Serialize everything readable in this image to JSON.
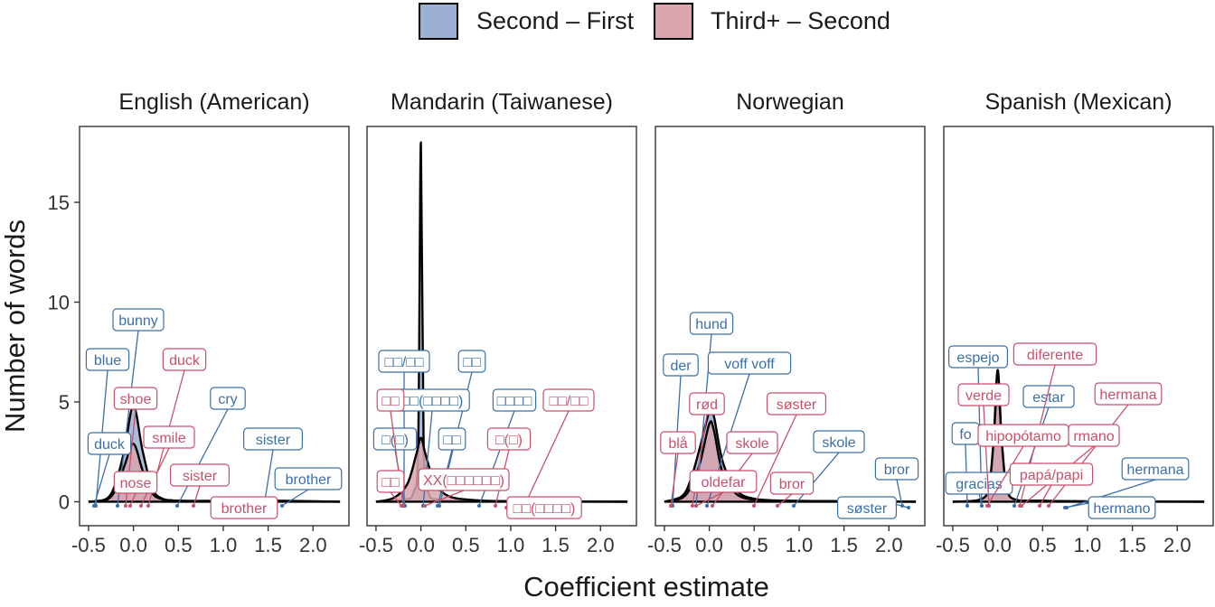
{
  "colors": {
    "series1_fill": "#9bb0d3",
    "series2_fill": "#dba5ae",
    "series1_text": "#3b6fa8",
    "series2_text": "#c8516a",
    "outline": "#000000"
  },
  "chart_data": {
    "type": "area",
    "xlabel": "Coefficient estimate",
    "ylabel": "Number of words",
    "legend": {
      "position": "top",
      "entries": [
        "Second – First",
        "Third+ – Second"
      ]
    },
    "xlim": [
      -0.6,
      2.4
    ],
    "ylim": [
      -1.2,
      18.8
    ],
    "xticks": [
      "-0.5",
      "0.0",
      "0.5",
      "1.0",
      "1.5",
      "2.0"
    ],
    "xtick_values": [
      -0.5,
      0,
      0.5,
      1,
      1.5,
      2
    ],
    "yticks": [
      "0",
      "5",
      "10",
      "15"
    ],
    "ytick_values": [
      0,
      5,
      10,
      15
    ],
    "grid": false,
    "panels": [
      {
        "title": "English (American)",
        "series": [
          {
            "name": "Second – First",
            "x": [
              -0.5,
              -0.3,
              -0.2,
              -0.1,
              0.0,
              0.1,
              0.2,
              0.3,
              0.5,
              1.0,
              1.6,
              2.3
            ],
            "y": [
              0,
              0.15,
              0.9,
              2.6,
              4.8,
              2.6,
              0.8,
              0.2,
              0.05,
              0.05,
              0.05,
              0
            ]
          },
          {
            "name": "Third+ – Second",
            "x": [
              -0.5,
              -0.3,
              -0.2,
              -0.1,
              0.0,
              0.1,
              0.2,
              0.3,
              0.5,
              1.0,
              1.6,
              2.3
            ],
            "y": [
              0,
              0.1,
              0.6,
              1.8,
              2.9,
              1.6,
              0.5,
              0.15,
              0.05,
              0.03,
              0.02,
              0
            ]
          }
        ],
        "annotations": [
          {
            "text": "bunny",
            "series": "Second – First"
          },
          {
            "text": "blue",
            "series": "Second – First"
          },
          {
            "text": "cry",
            "series": "Second – First"
          },
          {
            "text": "duck",
            "series": "Second – First"
          },
          {
            "text": "sister",
            "series": "Second – First"
          },
          {
            "text": "brother",
            "series": "Second – First"
          },
          {
            "text": "duck",
            "series": "Third+ – Second"
          },
          {
            "text": "shoe",
            "series": "Third+ – Second"
          },
          {
            "text": "smile",
            "series": "Third+ – Second"
          },
          {
            "text": "sister",
            "series": "Third+ – Second"
          },
          {
            "text": "nose",
            "series": "Third+ – Second"
          },
          {
            "text": "brother",
            "series": "Third+ – Second"
          }
        ]
      },
      {
        "title": "Mandarin (Taiwanese)",
        "series": [
          {
            "name": "Second – First",
            "x": [
              -0.5,
              -0.2,
              -0.08,
              -0.03,
              0.0,
              0.03,
              0.08,
              0.2,
              0.5,
              1.0,
              2.3
            ],
            "y": [
              0,
              0.1,
              0.5,
              3,
              18,
              3,
              0.5,
              0.1,
              0.05,
              0.02,
              0
            ]
          },
          {
            "name": "Third+ – Second",
            "x": [
              -0.5,
              -0.3,
              -0.15,
              -0.05,
              0.0,
              0.05,
              0.15,
              0.3,
              0.55,
              1.0,
              2.3
            ],
            "y": [
              0,
              0.2,
              0.9,
              2.4,
              3.2,
              2.4,
              1.0,
              0.3,
              0.1,
              0.03,
              0
            ]
          }
        ],
        "annotations": [
          {
            "text": "□□/□□",
            "series": "Second – First"
          },
          {
            "text": "□□",
            "series": "Second – First"
          },
          {
            "text": "□□(□□□□)",
            "series": "Second – First"
          },
          {
            "text": "□□□□",
            "series": "Second – First"
          },
          {
            "text": "□(□)",
            "series": "Second – First"
          },
          {
            "text": "□□",
            "series": "Second – First"
          },
          {
            "text": "□□",
            "series": "Third+ – Second"
          },
          {
            "text": "□□/□□",
            "series": "Third+ – Second"
          },
          {
            "text": "□(□)",
            "series": "Third+ – Second"
          },
          {
            "text": "□□",
            "series": "Third+ – Second"
          },
          {
            "text": "XX(□□□□□□)",
            "series": "Third+ – Second"
          },
          {
            "text": "□□(□□□□)",
            "series": "Third+ – Second"
          }
        ]
      },
      {
        "title": "Norwegian",
        "series": [
          {
            "name": "Second – First",
            "x": [
              -0.5,
              -0.3,
              -0.2,
              -0.1,
              0.0,
              0.05,
              0.15,
              0.3,
              0.5,
              0.9,
              1.5,
              2.3
            ],
            "y": [
              0,
              0.3,
              1.2,
              2.8,
              4.5,
              4.3,
              2.0,
              0.6,
              0.15,
              0.05,
              0.03,
              0
            ]
          },
          {
            "name": "Third+ – Second",
            "x": [
              -0.5,
              -0.3,
              -0.2,
              -0.1,
              0.0,
              0.05,
              0.15,
              0.3,
              0.5,
              0.9,
              1.5,
              2.3
            ],
            "y": [
              0,
              0.2,
              0.8,
              2.0,
              3.9,
              3.6,
              1.4,
              0.4,
              0.1,
              0.04,
              0.02,
              0
            ]
          }
        ],
        "annotations": [
          {
            "text": "hund",
            "series": "Second – First"
          },
          {
            "text": "der",
            "series": "Second – First"
          },
          {
            "text": "voff voff",
            "series": "Second – First"
          },
          {
            "text": "skole",
            "series": "Second – First"
          },
          {
            "text": "bror",
            "series": "Second – First"
          },
          {
            "text": "søster",
            "series": "Second – First"
          },
          {
            "text": "rød",
            "series": "Third+ – Second"
          },
          {
            "text": "søster",
            "series": "Third+ – Second"
          },
          {
            "text": "blå",
            "series": "Third+ – Second"
          },
          {
            "text": "skole",
            "series": "Third+ – Second"
          },
          {
            "text": "oldefar",
            "series": "Third+ – Second"
          },
          {
            "text": "bror",
            "series": "Third+ – Second"
          }
        ]
      },
      {
        "title": "Spanish (Mexican)",
        "series": [
          {
            "name": "Second – First",
            "x": [
              -0.5,
              -0.2,
              -0.1,
              -0.05,
              0.0,
              0.05,
              0.1,
              0.2,
              0.5,
              1.0,
              2.3
            ],
            "y": [
              0,
              0.1,
              0.6,
              2.5,
              6.6,
              2.5,
              0.6,
              0.1,
              0.05,
              0.02,
              0
            ]
          },
          {
            "name": "Third+ – Second",
            "x": [
              -0.5,
              -0.2,
              -0.1,
              -0.05,
              0.0,
              0.05,
              0.1,
              0.2,
              0.5,
              1.0,
              2.3
            ],
            "y": [
              0,
              0.1,
              0.7,
              2.8,
              5.8,
              2.8,
              0.7,
              0.1,
              0.05,
              0.02,
              0
            ]
          }
        ],
        "annotations": [
          {
            "text": "espejo",
            "series": "Second – First"
          },
          {
            "text": "estar",
            "series": "Second – First"
          },
          {
            "text": "fo",
            "series": "Second – First"
          },
          {
            "text": "gracias",
            "series": "Second – First"
          },
          {
            "text": "hermana",
            "series": "Second – First"
          },
          {
            "text": "hermano",
            "series": "Second – First"
          },
          {
            "text": "diferente",
            "series": "Third+ – Second"
          },
          {
            "text": "verde",
            "series": "Third+ – Second"
          },
          {
            "text": "hermana",
            "series": "Third+ – Second"
          },
          {
            "text": "hipopótamo",
            "series": "Third+ – Second"
          },
          {
            "text": "rmano",
            "series": "Third+ – Second"
          },
          {
            "text": "papá/papi",
            "series": "Third+ – Second"
          }
        ]
      }
    ]
  }
}
